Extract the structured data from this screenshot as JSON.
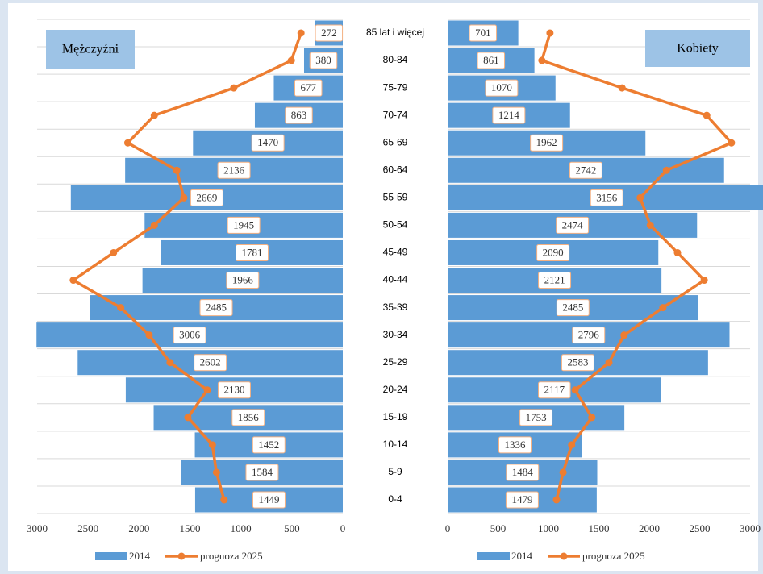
{
  "chart_data": {
    "type": "pyramid",
    "categories": [
      "0-4",
      "5-9",
      "10-14",
      "15-19",
      "20-24",
      "25-29",
      "30-34",
      "35-39",
      "40-44",
      "45-49",
      "50-54",
      "55-59",
      "60-64",
      "65-69",
      "70-74",
      "75-79",
      "80-84",
      "85 lat i więcej"
    ],
    "grid": true,
    "panels": [
      {
        "title": "Mężczyźni",
        "xlim": [
          3000,
          0
        ],
        "xticks": [
          3000,
          2500,
          2000,
          1500,
          1000,
          500,
          0
        ],
        "series": [
          {
            "name": "2014",
            "kind": "bar",
            "color": "#5b9bd5",
            "data_labels": true,
            "values": [
              1449,
              1584,
              1452,
              1856,
              2130,
              2602,
              3006,
              2485,
              1966,
              1781,
              1945,
              2669,
              2136,
              1470,
              863,
              677,
              380,
              272
            ]
          },
          {
            "name": "prognoza 2025",
            "kind": "line",
            "color": "#ed7d31",
            "values": [
              1165,
              1240,
              1280,
              1520,
              1330,
              1695,
              1900,
              2180,
              2645,
              2250,
              1850,
              1560,
              1630,
              2110,
              1850,
              1070,
              505,
              410
            ]
          }
        ]
      },
      {
        "title": "Kobiety",
        "xlim": [
          0,
          3000
        ],
        "xticks": [
          0,
          500,
          1000,
          1500,
          2000,
          2500,
          3000
        ],
        "series": [
          {
            "name": "2014",
            "kind": "bar",
            "color": "#5b9bd5",
            "data_labels": true,
            "values": [
              1479,
              1484,
              1336,
              1753,
              2117,
              2583,
              2796,
              2485,
              2121,
              2090,
              2474,
              3156,
              2742,
              1962,
              1214,
              1070,
              861,
              701
            ]
          },
          {
            "name": "prognoza 2025",
            "kind": "line",
            "color": "#ed7d31",
            "values": [
              1080,
              1145,
              1230,
              1430,
              1265,
              1600,
              1750,
              2135,
              2545,
              2280,
              2010,
              1910,
              2170,
              2815,
              2570,
              1730,
              935,
              1015
            ]
          }
        ]
      }
    ]
  }
}
